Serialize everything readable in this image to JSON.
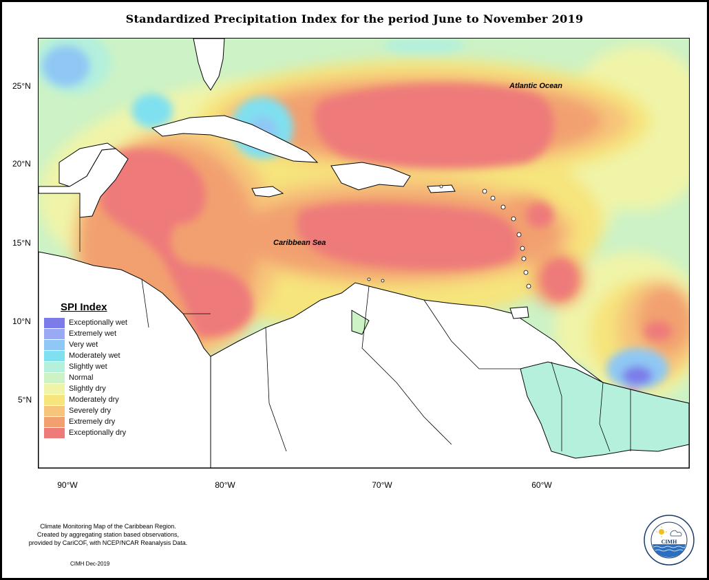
{
  "title": "Standardized Precipitation Index for the period June to November 2019",
  "map": {
    "lat_ticks": [
      "25°N",
      "20°N",
      "15°N",
      "10°N",
      "5°N"
    ],
    "lon_ticks": [
      "90°W",
      "80°W",
      "70°W",
      "60°W"
    ],
    "labels": {
      "atlantic": "Atlantic Ocean",
      "caribbean": "Caribbean Sea"
    }
  },
  "legend": {
    "title": "SPI Index",
    "items": [
      {
        "label": "Exceptionally wet",
        "color": "#7b7bea"
      },
      {
        "label": "Extremely wet",
        "color": "#9aaaf2"
      },
      {
        "label": "Very wet",
        "color": "#8fc8f4"
      },
      {
        "label": "Moderately wet",
        "color": "#7fe0f0"
      },
      {
        "label": "Slightly wet",
        "color": "#b4f0dc"
      },
      {
        "label": "Normal",
        "color": "#ccf2c6"
      },
      {
        "label": "Slightly dry",
        "color": "#f0f4a8"
      },
      {
        "label": "Moderately dry",
        "color": "#f6e47c"
      },
      {
        "label": "Severely dry",
        "color": "#f6c47a"
      },
      {
        "label": "Extremely dry",
        "color": "#f2a070"
      },
      {
        "label": "Exceptionally dry",
        "color": "#ee7a7a"
      }
    ]
  },
  "credit": {
    "line1": "Climate Monitoring Map of the Caribbean Region.",
    "line2": "Created by aggregating station based observations,",
    "line3": "provided by CariCOF, with NCEP/NCAR Reanalysis Data.",
    "date": "CIMH Dec-2019"
  },
  "logo": {
    "abbr": "CIMH",
    "ring_text": "Caribbean Institute for Meteorology and Hydrology"
  }
}
